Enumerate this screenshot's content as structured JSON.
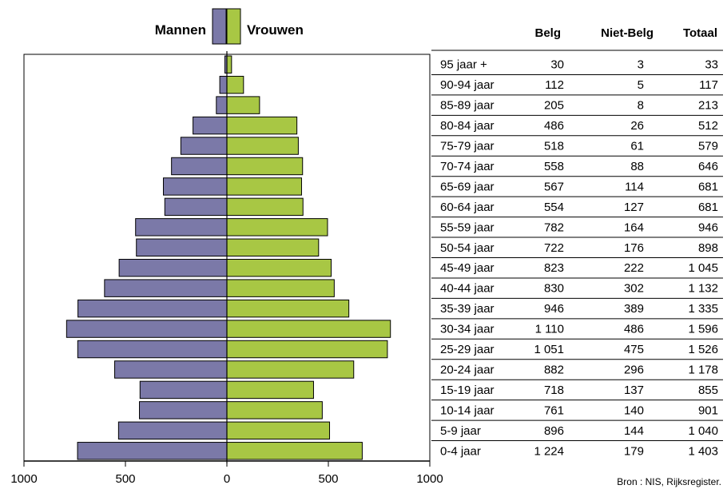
{
  "chart_data": {
    "type": "bar",
    "subtype": "population-pyramid",
    "legend": {
      "men_label": "Mannen",
      "women_label": "Vrouwen",
      "placement": "top-center"
    },
    "colors": {
      "men": "#7b79a8",
      "women": "#a8c744"
    },
    "table_headers": {
      "belg": "Belg",
      "niet_belg": "Niet-Belg",
      "totaal": "Totaal"
    },
    "xlim": [
      -1000,
      1000
    ],
    "x_ticks": [
      "1000",
      "500",
      "0",
      "500",
      "1000"
    ],
    "source": "Bron : NIS, Rijksregister.",
    "rows": [
      {
        "age": "95 jaar +",
        "men": 10,
        "women": 23,
        "belg": "30",
        "niet_belg": "3",
        "totaal": "33"
      },
      {
        "age": "90-94 jaar",
        "men": 35,
        "women": 82,
        "belg": "112",
        "niet_belg": "5",
        "totaal": "117"
      },
      {
        "age": "85-89 jaar",
        "men": 52,
        "women": 161,
        "belg": "205",
        "niet_belg": "8",
        "totaal": "213"
      },
      {
        "age": "80-84 jaar",
        "men": 167,
        "women": 345,
        "belg": "486",
        "niet_belg": "26",
        "totaal": "512"
      },
      {
        "age": "75-79 jaar",
        "men": 227,
        "women": 352,
        "belg": "518",
        "niet_belg": "61",
        "totaal": "579"
      },
      {
        "age": "70-74 jaar",
        "men": 273,
        "women": 373,
        "belg": "558",
        "niet_belg": "88",
        "totaal": "646"
      },
      {
        "age": "65-69 jaar",
        "men": 313,
        "women": 368,
        "belg": "567",
        "niet_belg": "114",
        "totaal": "681"
      },
      {
        "age": "60-64 jaar",
        "men": 306,
        "women": 375,
        "belg": "554",
        "niet_belg": "127",
        "totaal": "681"
      },
      {
        "age": "55-59 jaar",
        "men": 450,
        "women": 496,
        "belg": "782",
        "niet_belg": "164",
        "totaal": "946"
      },
      {
        "age": "50-54 jaar",
        "men": 446,
        "women": 452,
        "belg": "722",
        "niet_belg": "176",
        "totaal": "898"
      },
      {
        "age": "45-49 jaar",
        "men": 531,
        "women": 514,
        "belg": "823",
        "niet_belg": "222",
        "totaal": "1 045"
      },
      {
        "age": "40-44 jaar",
        "men": 603,
        "women": 529,
        "belg": "830",
        "niet_belg": "302",
        "totaal": "1 132"
      },
      {
        "age": "35-39 jaar",
        "men": 734,
        "women": 601,
        "belg": "946",
        "niet_belg": "389",
        "totaal": "1 335"
      },
      {
        "age": "30-34 jaar",
        "men": 790,
        "women": 806,
        "belg": "1 110",
        "niet_belg": "486",
        "totaal": "1 596"
      },
      {
        "age": "25-29 jaar",
        "men": 735,
        "women": 791,
        "belg": "1 051",
        "niet_belg": "475",
        "totaal": "1 526"
      },
      {
        "age": "20-24 jaar",
        "men": 553,
        "women": 625,
        "belg": "882",
        "niet_belg": "296",
        "totaal": "1 178"
      },
      {
        "age": "15-19 jaar",
        "men": 428,
        "women": 427,
        "belg": "718",
        "niet_belg": "137",
        "totaal": "855"
      },
      {
        "age": "10-14 jaar",
        "men": 431,
        "women": 470,
        "belg": "761",
        "niet_belg": "140",
        "totaal": "901"
      },
      {
        "age": "5-9 jaar",
        "men": 534,
        "women": 506,
        "belg": "896",
        "niet_belg": "144",
        "totaal": "1 040"
      },
      {
        "age": "0-4 jaar",
        "men": 736,
        "women": 667,
        "belg": "1 224",
        "niet_belg": "179",
        "totaal": "1 403"
      }
    ]
  }
}
